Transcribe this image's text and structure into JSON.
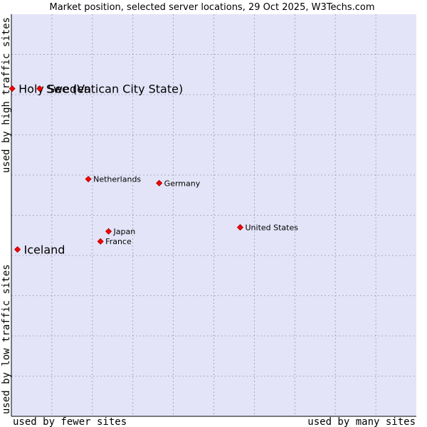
{
  "chart_data": {
    "type": "scatter",
    "title": "Market position, selected server locations, 29 Oct 2025, W3Techs.com",
    "xlabel_left": "used by fewer sites",
    "xlabel_right": "used by many sites",
    "ylabel_bottom": "used by low traffic sites",
    "ylabel_top": "used by high traffic sites",
    "xlim": [
      0,
      100
    ],
    "ylim": [
      0,
      100
    ],
    "grid": true,
    "colors": {
      "plot_background": "#e4e4f8",
      "grid": "#9a9ab0",
      "axis": "#000000",
      "marker": "#ff0000",
      "marker_outline": "#990000",
      "text": "#000000"
    },
    "points": [
      {
        "label": "Holy See (Vatican City State)",
        "x": 0.2,
        "y": 81.5,
        "emphasis": true
      },
      {
        "label": "Sweden",
        "x": 7.0,
        "y": 81.5,
        "emphasis": true
      },
      {
        "label": "Iceland",
        "x": 1.5,
        "y": 41.5,
        "emphasis": true
      },
      {
        "label": "Netherlands",
        "x": 19.0,
        "y": 59.0,
        "emphasis": false
      },
      {
        "label": "Germany",
        "x": 36.5,
        "y": 58.0,
        "emphasis": false
      },
      {
        "label": "United States",
        "x": 56.5,
        "y": 47.0,
        "emphasis": false
      },
      {
        "label": "Japan",
        "x": 24.0,
        "y": 46.0,
        "emphasis": false
      },
      {
        "label": "France",
        "x": 22.0,
        "y": 43.5,
        "emphasis": false
      }
    ]
  }
}
